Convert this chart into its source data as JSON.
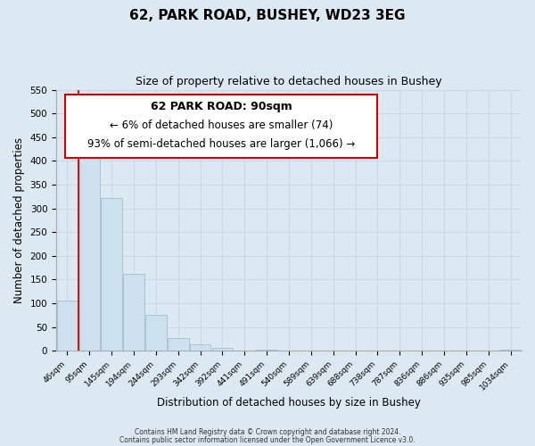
{
  "title": "62, PARK ROAD, BUSHEY, WD23 3EG",
  "subtitle": "Size of property relative to detached houses in Bushey",
  "xlabel": "Distribution of detached houses by size in Bushey",
  "ylabel": "Number of detached properties",
  "bar_labels": [
    "46sqm",
    "95sqm",
    "145sqm",
    "194sqm",
    "244sqm",
    "293sqm",
    "342sqm",
    "392sqm",
    "441sqm",
    "491sqm",
    "540sqm",
    "589sqm",
    "639sqm",
    "688sqm",
    "738sqm",
    "787sqm",
    "836sqm",
    "886sqm",
    "935sqm",
    "985sqm",
    "1034sqm"
  ],
  "bar_values": [
    105,
    428,
    322,
    162,
    75,
    27,
    13,
    5,
    0,
    3,
    0,
    0,
    0,
    0,
    0,
    0,
    0,
    0,
    0,
    0,
    3
  ],
  "bar_color": "#cde0ed",
  "bar_edge_color": "#a0bfd0",
  "ylim": [
    0,
    550
  ],
  "yticks": [
    0,
    50,
    100,
    150,
    200,
    250,
    300,
    350,
    400,
    450,
    500,
    550
  ],
  "redline_x": 0.5,
  "annotation_title": "62 PARK ROAD: 90sqm",
  "annotation_line1": "← 6% of detached houses are smaller (74)",
  "annotation_line2": "93% of semi-detached houses are larger (1,066) →",
  "annotation_box_color": "#ffffff",
  "annotation_box_edge_color": "#cc0000",
  "footer_line1": "Contains HM Land Registry data © Crown copyright and database right 2024.",
  "footer_line2": "Contains public sector information licensed under the Open Government Licence v3.0.",
  "grid_color": "#ccd8e4",
  "background_color": "#dce8f2",
  "title_fontsize": 11,
  "subtitle_fontsize": 9
}
